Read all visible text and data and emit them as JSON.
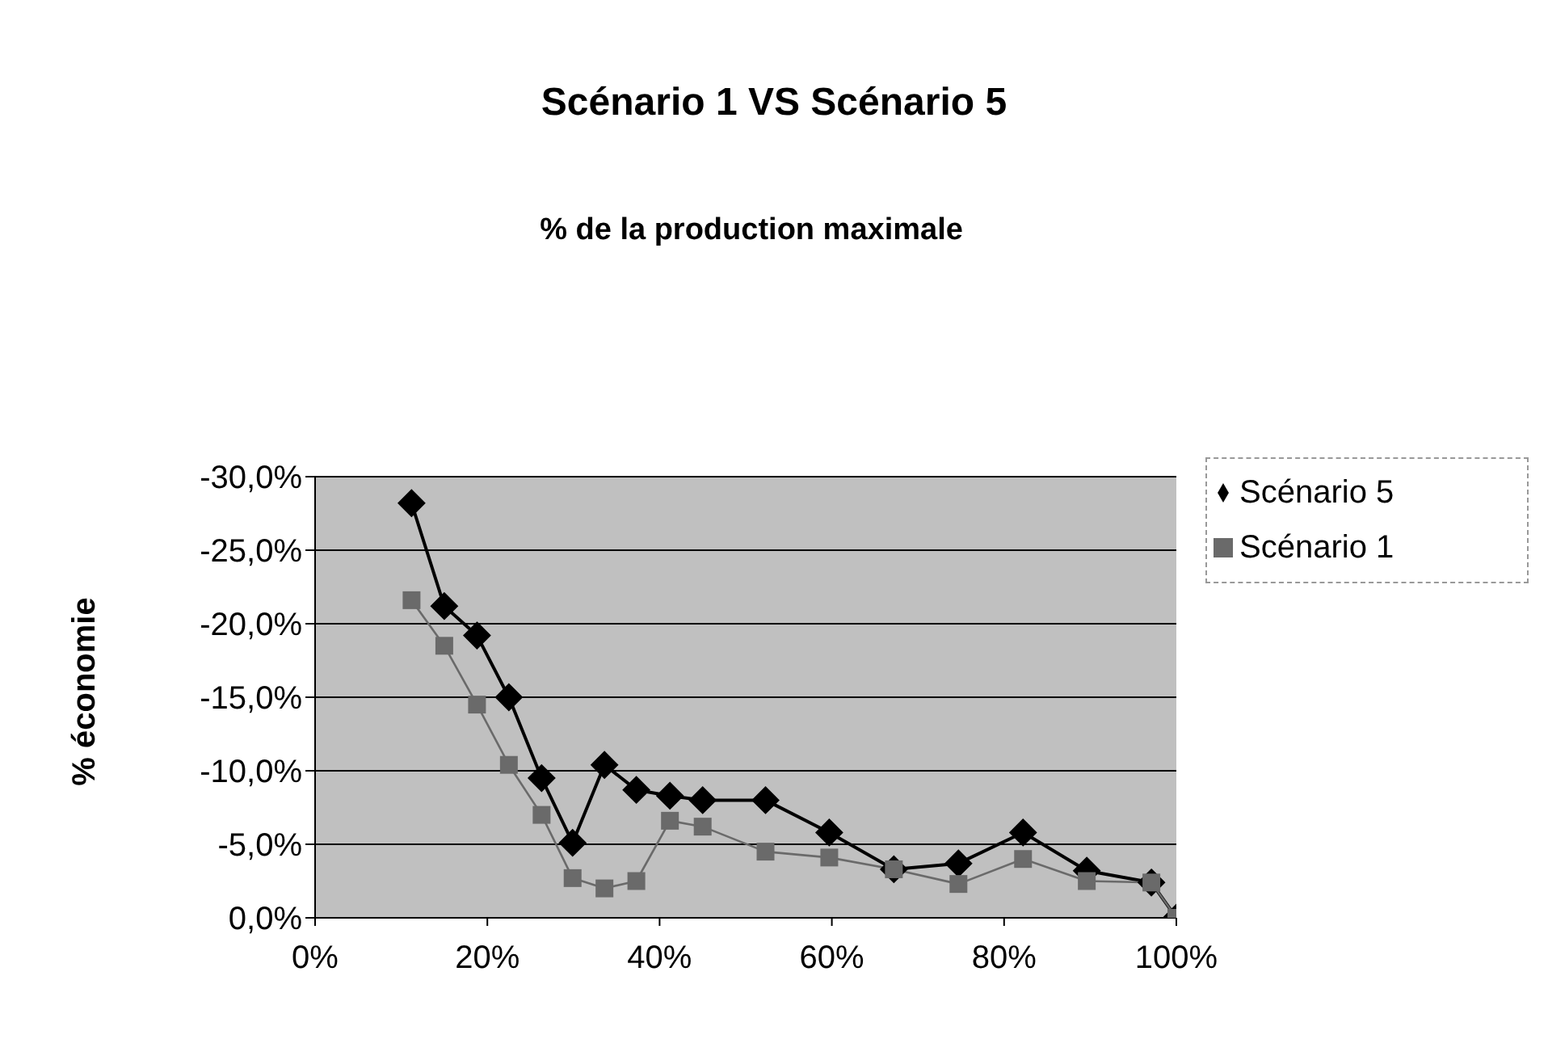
{
  "chart_data": {
    "type": "line",
    "title": "Scénario 1 VS Scénario 5",
    "subtitle": "% de la production maximale",
    "ylabel": "% économie",
    "x": [
      11.2,
      15,
      18.8,
      22.5,
      26.3,
      29.9,
      33.6,
      37.3,
      41.2,
      45,
      52.3,
      59.7,
      67.2,
      74.7,
      82.2,
      89.6,
      97.1,
      100
    ],
    "series": [
      {
        "name": "Scénario 5",
        "color": "#000000",
        "marker": "diamond",
        "values": [
          -28.2,
          -21.2,
          -19.2,
          -15.0,
          -9.5,
          -5.1,
          -10.4,
          -8.7,
          -8.3,
          -8.0,
          -8.0,
          -5.8,
          -3.3,
          -3.7,
          -5.8,
          -3.2,
          -2.4,
          0
        ]
      },
      {
        "name": "Scénario 1",
        "color": "#6a6a6a",
        "marker": "square",
        "values": [
          -21.6,
          -18.5,
          -14.5,
          -10.4,
          -7.0,
          -2.7,
          -2.0,
          -2.5,
          -6.6,
          -6.2,
          -4.5,
          -4.1,
          -3.3,
          -2.3,
          -4.0,
          -2.5,
          -2.4,
          0
        ]
      }
    ],
    "xlim": [
      0,
      100
    ],
    "xticks": [
      {
        "value": 0,
        "label": "0%"
      },
      {
        "value": 20,
        "label": "20%"
      },
      {
        "value": 40,
        "label": "40%"
      },
      {
        "value": 60,
        "label": "60%"
      },
      {
        "value": 80,
        "label": "80%"
      },
      {
        "value": 100,
        "label": "100%"
      }
    ],
    "ylim": [
      0,
      -30
    ],
    "yticks": [
      {
        "value": 0,
        "label": "0,0%"
      },
      {
        "value": -5,
        "label": "-5,0%"
      },
      {
        "value": -10,
        "label": "-10,0%"
      },
      {
        "value": -15,
        "label": "-15,0%"
      },
      {
        "value": -20,
        "label": "-20,0%"
      },
      {
        "value": -25,
        "label": "-25,0%"
      },
      {
        "value": -30,
        "label": "-30,0%"
      }
    ],
    "grid": "y",
    "legend": "right",
    "line_style": "solid"
  }
}
